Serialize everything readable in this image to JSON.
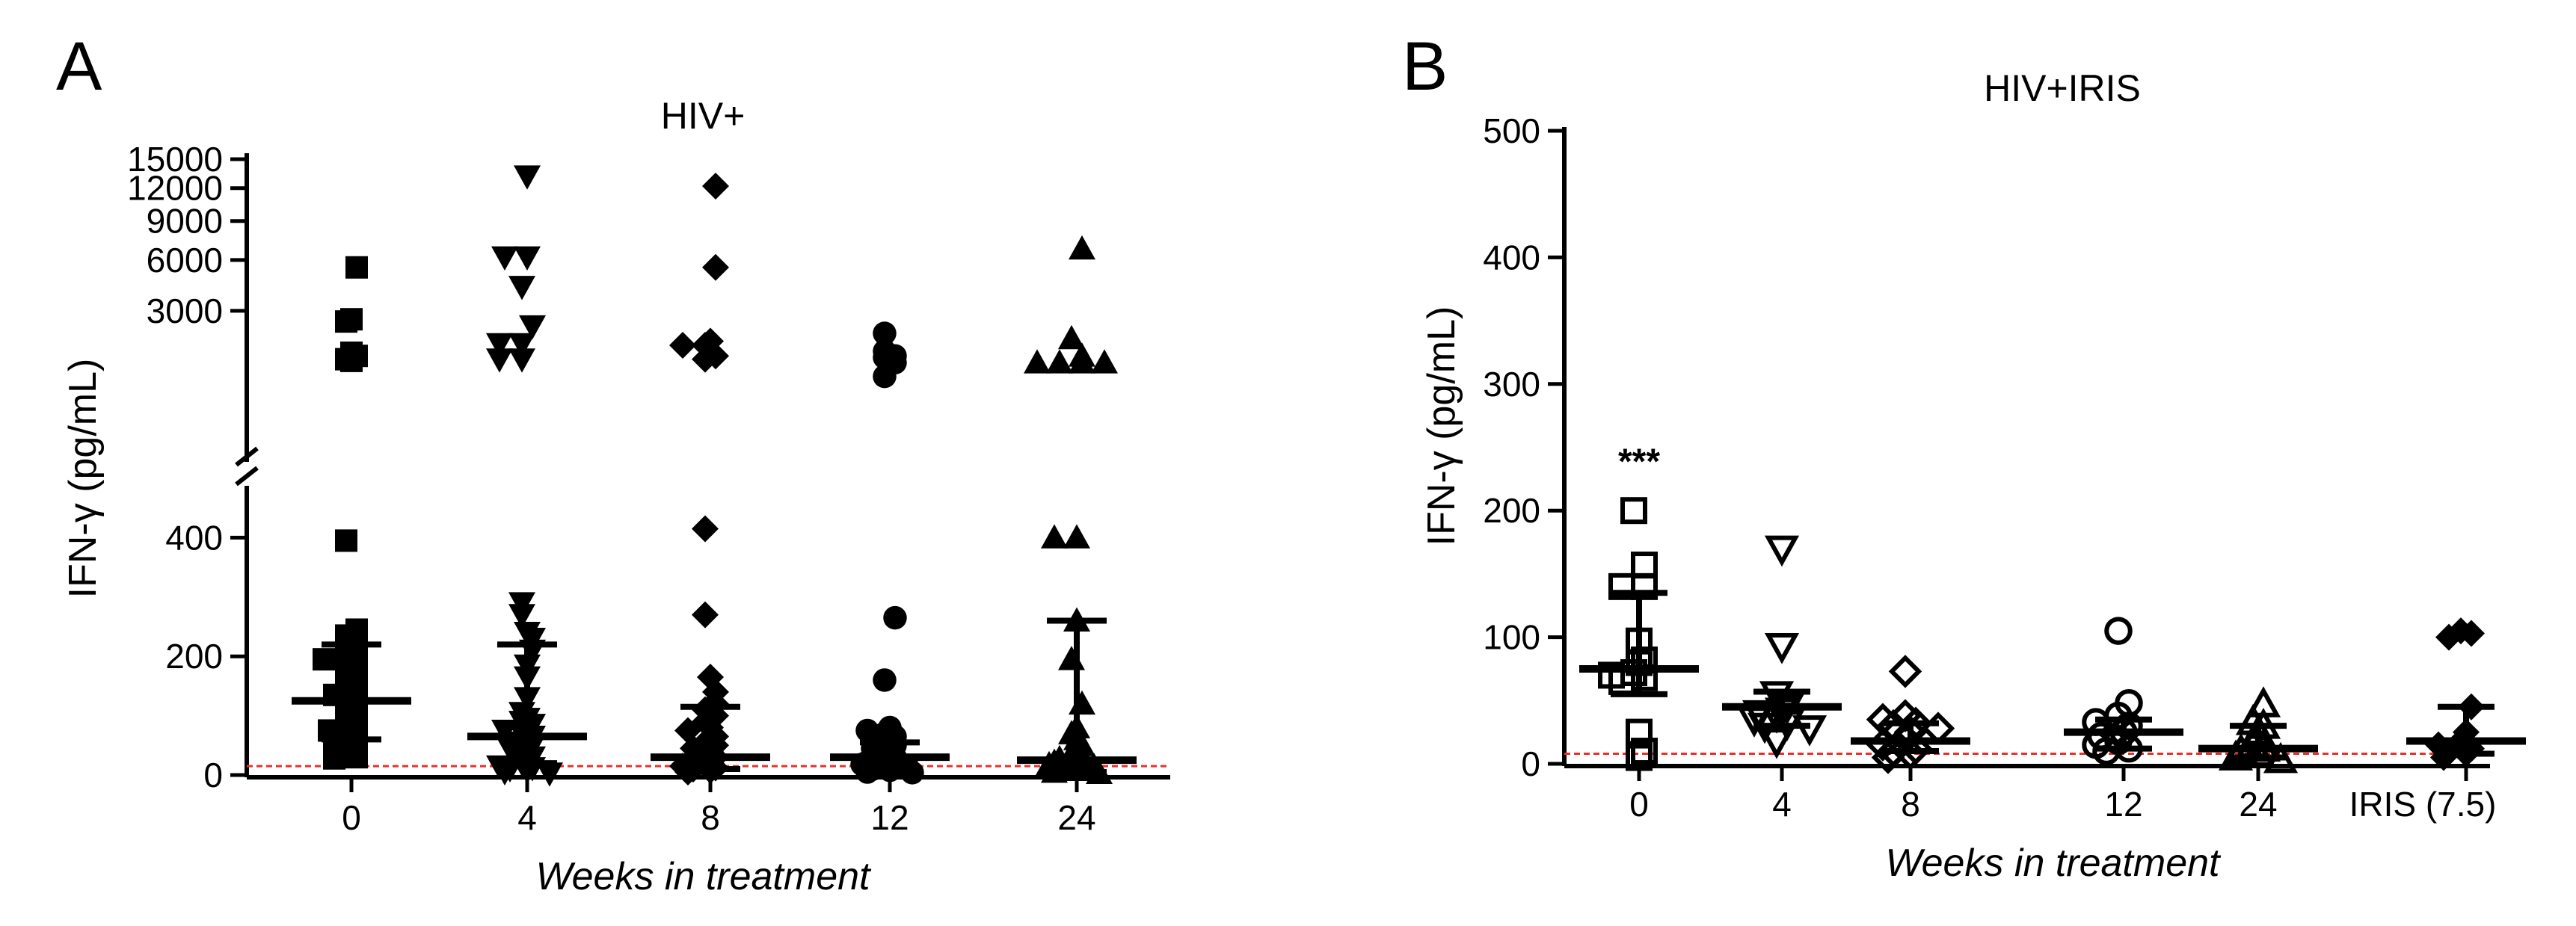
{
  "figure": {
    "panel_labels": [
      "A",
      "B"
    ]
  },
  "chart_data": [
    {
      "type": "scatter",
      "panel": "A",
      "title": "HIV+",
      "xlabel": "Weeks in treatment",
      "ylabel": "IFN-γ (pg/mL)",
      "categories": [
        "0",
        "4",
        "8",
        "12",
        "24"
      ],
      "y_axis": {
        "broken": true,
        "lower_range": [
          0,
          500
        ],
        "lower_ticks": [
          0,
          200,
          400
        ],
        "upper_range": [
          0,
          15000
        ],
        "upper_ticks": [
          3000,
          6000,
          9000,
          12000,
          15000
        ]
      },
      "detection_limit": 15,
      "markers": [
        "square",
        "triangle-down",
        "diamond",
        "circle",
        "triangle-up"
      ],
      "summary": [
        {
          "category": "0",
          "median": 125,
          "iqr": [
            60,
            220
          ]
        },
        {
          "category": "4",
          "median": 65,
          "iqr": [
            20,
            220
          ]
        },
        {
          "category": "8",
          "median": 30,
          "iqr": [
            10,
            115
          ]
        },
        {
          "category": "12",
          "median": 30,
          "iqr": [
            10,
            55
          ]
        },
        {
          "category": "24",
          "median": 25,
          "iqr": [
            5,
            260
          ]
        }
      ],
      "points": [
        [
          5500,
          2600,
          2500,
          1300,
          1250,
          1200,
          1100,
          1050,
          395,
          245,
          235,
          230,
          215,
          210,
          205,
          200,
          195,
          185,
          180,
          175,
          170,
          160,
          150,
          145,
          140,
          135,
          130,
          125,
          120,
          115,
          110,
          100,
          95,
          90,
          85,
          80,
          75,
          70,
          65,
          60,
          55,
          50,
          45,
          40,
          35,
          30,
          28
        ],
        [
          13200,
          6200,
          6200,
          4300,
          2300,
          1600,
          1600,
          1100,
          1100,
          290,
          270,
          240,
          230,
          210,
          185,
          165,
          130,
          105,
          95,
          90,
          85,
          80,
          75,
          70,
          65,
          60,
          55,
          50,
          45,
          40,
          35,
          30,
          25,
          20,
          15,
          12,
          10,
          8,
          5,
          3
        ],
        [
          12200,
          5500,
          1700,
          1550,
          1550,
          1200,
          1100,
          415,
          270,
          165,
          140,
          120,
          115,
          110,
          100,
          95,
          90,
          80,
          75,
          65,
          55,
          50,
          45,
          40,
          35,
          30,
          28,
          25,
          20,
          15,
          12,
          10,
          8,
          5
        ],
        [
          2000,
          1350,
          1200,
          1150,
          1000,
          650,
          265,
          160,
          80,
          75,
          70,
          65,
          65,
          60,
          55,
          50,
          45,
          40,
          35,
          30,
          28,
          25,
          22,
          20,
          18,
          15,
          12,
          10,
          8,
          5,
          4
        ],
        [
          6800,
          1800,
          1200,
          1000,
          1000,
          1000,
          1000,
          400,
          400,
          260,
          195,
          120,
          80,
          70,
          60,
          50,
          40,
          35,
          30,
          28,
          25,
          22,
          20,
          18,
          15,
          12,
          10,
          8,
          5,
          3
        ]
      ]
    },
    {
      "type": "scatter",
      "panel": "B",
      "title": "HIV+IRIS",
      "xlabel": "Weeks in treatment",
      "ylabel": "IFN-γ (pg/mL)",
      "categories": [
        "0",
        "4",
        "8",
        "12",
        "24",
        "IRIS (7.5)"
      ],
      "ylim": [
        0,
        500
      ],
      "yticks": [
        0,
        100,
        200,
        300,
        400,
        500
      ],
      "detection_limit": 8,
      "annotation": {
        "category": "0",
        "text": "***",
        "y": 240
      },
      "markers": [
        "square-open",
        "triangle-down-open",
        "diamond-open",
        "circle-open",
        "triangle-up-open",
        "diamond"
      ],
      "summary": [
        {
          "category": "0",
          "median": 75,
          "iqr": [
            55,
            135
          ]
        },
        {
          "category": "4",
          "median": 45,
          "iqr": [
            30,
            57
          ]
        },
        {
          "category": "8",
          "median": 18,
          "iqr": [
            10,
            32
          ]
        },
        {
          "category": "12",
          "median": 25,
          "iqr": [
            12,
            35
          ]
        },
        {
          "category": "24",
          "median": 12,
          "iqr": [
            5,
            30
          ]
        },
        {
          "category": "IRIS (7.5)",
          "median": 18,
          "iqr": [
            8,
            45
          ]
        }
      ],
      "points": [
        [
          200,
          157,
          140,
          140,
          97,
          82,
          80,
          72,
          70,
          68,
          65,
          25,
          10,
          5
        ],
        [
          170,
          93,
          55,
          45,
          42,
          40,
          38,
          35,
          32,
          30,
          28,
          18
        ],
        [
          73,
          38,
          35,
          32,
          30,
          28,
          25,
          20,
          15,
          12,
          10,
          8,
          5
        ],
        [
          105,
          48,
          38,
          33,
          30,
          25,
          22,
          18,
          15,
          12,
          10
        ],
        [
          47,
          33,
          30,
          25,
          15,
          12,
          10,
          8,
          5,
          3
        ],
        [
          105,
          103,
          100,
          45,
          25,
          18,
          15,
          12,
          10,
          8,
          5
        ]
      ]
    }
  ]
}
